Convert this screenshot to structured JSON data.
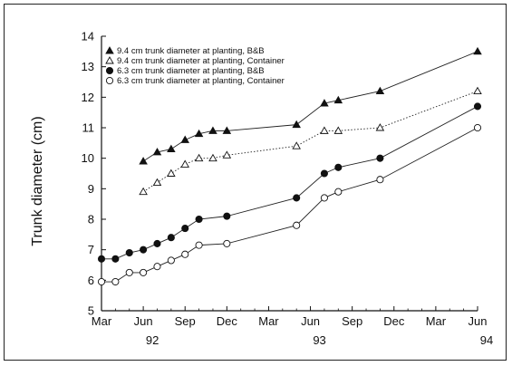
{
  "chart_data": {
    "type": "line",
    "title": "",
    "xlabel": "",
    "ylabel": "Trunk diameter (cm)",
    "x_month_labels": [
      "Mar",
      "Jun",
      "Sep",
      "Dec",
      "Mar",
      "Jun",
      "Sep",
      "Dec",
      "Mar",
      "Jun"
    ],
    "x_year_labels": [
      {
        "label": "92",
        "at_month": 6
      },
      {
        "label": "93",
        "at_month": 18
      },
      {
        "label": "94",
        "at_month": 30
      }
    ],
    "xlim_months": [
      3,
      30
    ],
    "ylim": [
      5,
      14
    ],
    "yticks": [
      5,
      6,
      7,
      8,
      9,
      10,
      11,
      12,
      13,
      14
    ],
    "legend_position": "top-left",
    "series": [
      {
        "name": "9.4 cm trunk diameter at planting, B&B",
        "marker": "filled-triangle",
        "line": "solid",
        "x": [
          6,
          7,
          8,
          9,
          10,
          11,
          12,
          17,
          19,
          20,
          23,
          30
        ],
        "y": [
          9.9,
          10.2,
          10.3,
          10.6,
          10.8,
          10.9,
          10.9,
          11.1,
          11.8,
          11.9,
          12.2,
          13.5
        ]
      },
      {
        "name": "9.4 cm trunk diameter at planting, Container",
        "marker": "open-triangle",
        "line": "dotted",
        "x": [
          6,
          7,
          8,
          9,
          10,
          11,
          12,
          17,
          19,
          20,
          23,
          30
        ],
        "y": [
          8.9,
          9.2,
          9.5,
          9.8,
          10.0,
          10.0,
          10.1,
          10.4,
          10.9,
          10.9,
          11.0,
          12.2
        ]
      },
      {
        "name": "6.3 cm trunk diameter at planting, B&B",
        "marker": "filled-circle",
        "line": "solid",
        "x": [
          3,
          4,
          5,
          6,
          7,
          8,
          9,
          10,
          12,
          17,
          19,
          20,
          23,
          30
        ],
        "y": [
          6.7,
          6.7,
          6.9,
          7.0,
          7.2,
          7.4,
          7.7,
          8.0,
          8.1,
          8.7,
          9.5,
          9.7,
          10.0,
          11.7
        ]
      },
      {
        "name": "6.3 cm trunk diameter at planting, Container",
        "marker": "open-circle",
        "line": "solid",
        "x": [
          3,
          4,
          5,
          6,
          7,
          8,
          9,
          10,
          12,
          17,
          19,
          20,
          23,
          30
        ],
        "y": [
          5.95,
          5.95,
          6.25,
          6.25,
          6.45,
          6.65,
          6.85,
          7.15,
          7.2,
          7.8,
          8.7,
          8.9,
          9.3,
          11.0
        ]
      }
    ]
  }
}
